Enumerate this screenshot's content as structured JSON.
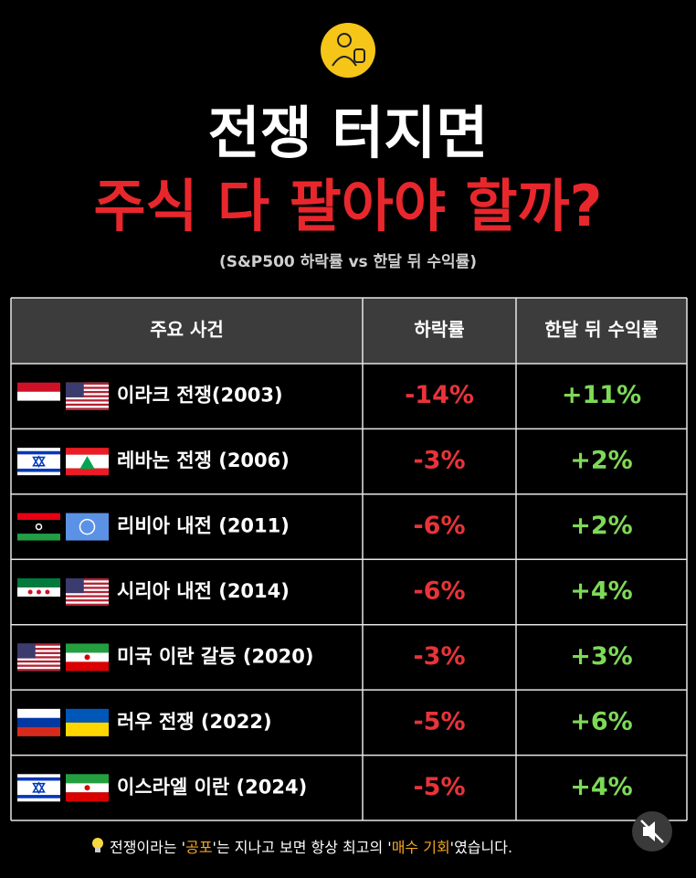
{
  "header": {
    "title_line1": "전쟁 터지면",
    "title_line2": "주식 다 팔아야 할까?",
    "subtitle": "(S&P500 하락률 vs 한달 뒤 수익률)"
  },
  "table": {
    "columns": [
      "주요 사건",
      "하락률",
      "한달 뒤 수익률"
    ],
    "rows": [
      [
        "이라크 전쟁(2003)",
        "-14%",
        "+11%"
      ],
      [
        "레바논 전쟁 (2006)",
        "-3%",
        "+2%"
      ],
      [
        "리비아 내전 (2011)",
        "-6%",
        "+2%"
      ],
      [
        "시리아 내전 (2014)",
        "-6%",
        "+4%"
      ],
      [
        "미국 이란 갈등 (2020)",
        "-3%",
        "+3%"
      ],
      [
        "러우 전쟁 (2022)",
        "-5%",
        "+6%"
      ],
      [
        "이스라엘 이란 (2024)",
        "-5%",
        "+4%"
      ]
    ]
  },
  "footer": {
    "parts": [
      "전쟁이라는 '",
      "공포",
      "'는 지나고 보면 항상 최고의 '",
      "매수 기회",
      "'였습니다."
    ]
  }
}
